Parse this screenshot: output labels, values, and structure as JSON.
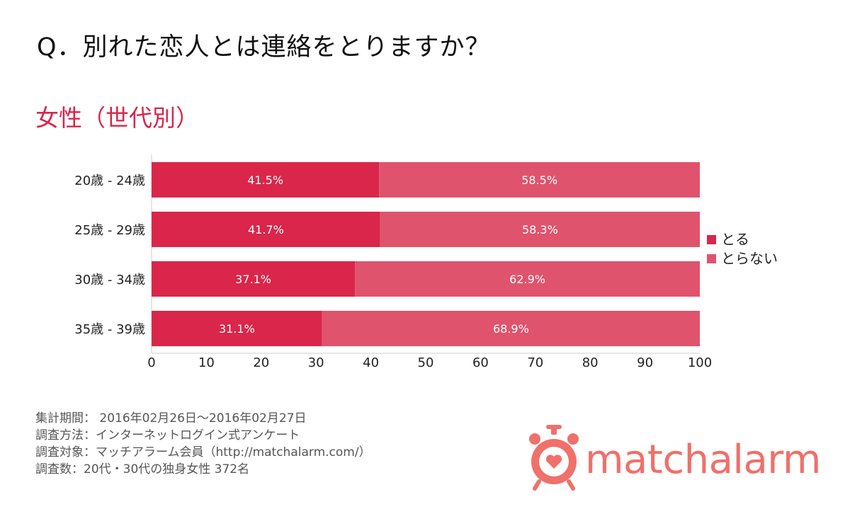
{
  "question": "Q．別れた恋人とは連絡をとりますか？",
  "subtitle": "女性（世代別）",
  "chart_data": {
    "type": "bar",
    "orientation": "horizontal",
    "stacked": true,
    "categories": [
      "20歳 - 24歳",
      "25歳 - 29歳",
      "30歳 - 34歳",
      "35歳 - 39歳"
    ],
    "series": [
      {
        "name": "とる",
        "values": [
          41.5,
          41.7,
          37.1,
          31.1
        ],
        "labels": [
          "41.5%",
          "41.7%",
          "37.1%",
          "31.1%"
        ],
        "color": "#d9264a"
      },
      {
        "name": "とらない",
        "values": [
          58.5,
          58.3,
          62.9,
          68.9
        ],
        "labels": [
          "58.5%",
          "58.3%",
          "62.9%",
          "68.9%"
        ],
        "color": "#e0536c"
      }
    ],
    "xlim": [
      0,
      100
    ],
    "xticks": [
      "0",
      "10",
      "20",
      "30",
      "40",
      "50",
      "60",
      "70",
      "80",
      "90",
      "100"
    ],
    "legend_position": "right",
    "grid": false
  },
  "footer": {
    "period": "集計期間： 2016年02月26日～2016年02月27日",
    "method": "調査方法：インターネットログイン式アンケート",
    "target": "調査対象：マッチアラーム会員（http://matchalarm.com/）",
    "count": "調査数：20代・30代の独身女性 372名"
  },
  "brand": {
    "name": "matchalarm",
    "color": "#f0706a"
  }
}
